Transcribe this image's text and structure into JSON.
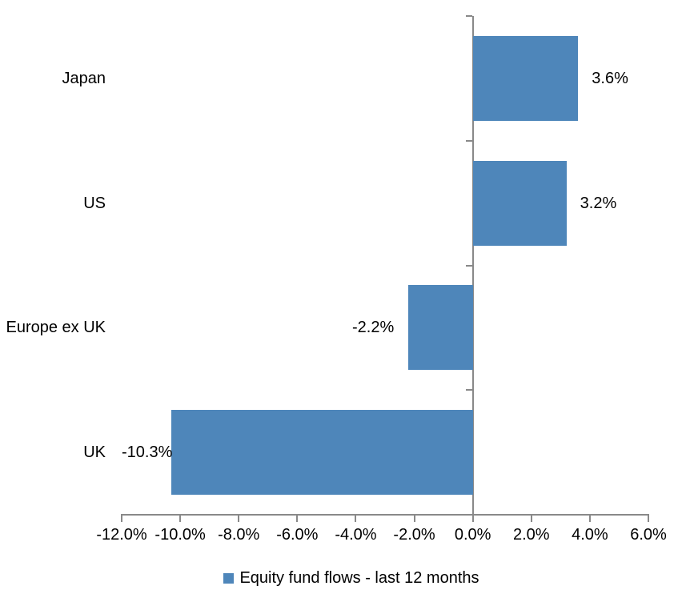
{
  "chart_data": {
    "type": "bar",
    "orientation": "horizontal",
    "title": "",
    "categories": [
      "Japan",
      "US",
      "Europe ex UK",
      "UK"
    ],
    "values": [
      3.6,
      3.2,
      -2.2,
      -10.3
    ],
    "data_labels": [
      "3.6%",
      "3.2%",
      "-2.2%",
      "-10.3%"
    ],
    "xlim": [
      -12,
      6
    ],
    "x_tick_step": 2,
    "x_tick_labels": [
      "-12.0%",
      "-10.0%",
      "-8.0%",
      "-6.0%",
      "-4.0%",
      "-2.0%",
      "0.0%",
      "2.0%",
      "4.0%",
      "6.0%"
    ],
    "grid": false,
    "legend_position": "bottom",
    "legend": [
      {
        "label": "Equity fund flows - last 12 months",
        "color": "#4e86ba"
      }
    ],
    "colors": {
      "bar": "#4e86ba",
      "axis": "#898989",
      "text": "#000000",
      "background": "#ffffff"
    }
  }
}
